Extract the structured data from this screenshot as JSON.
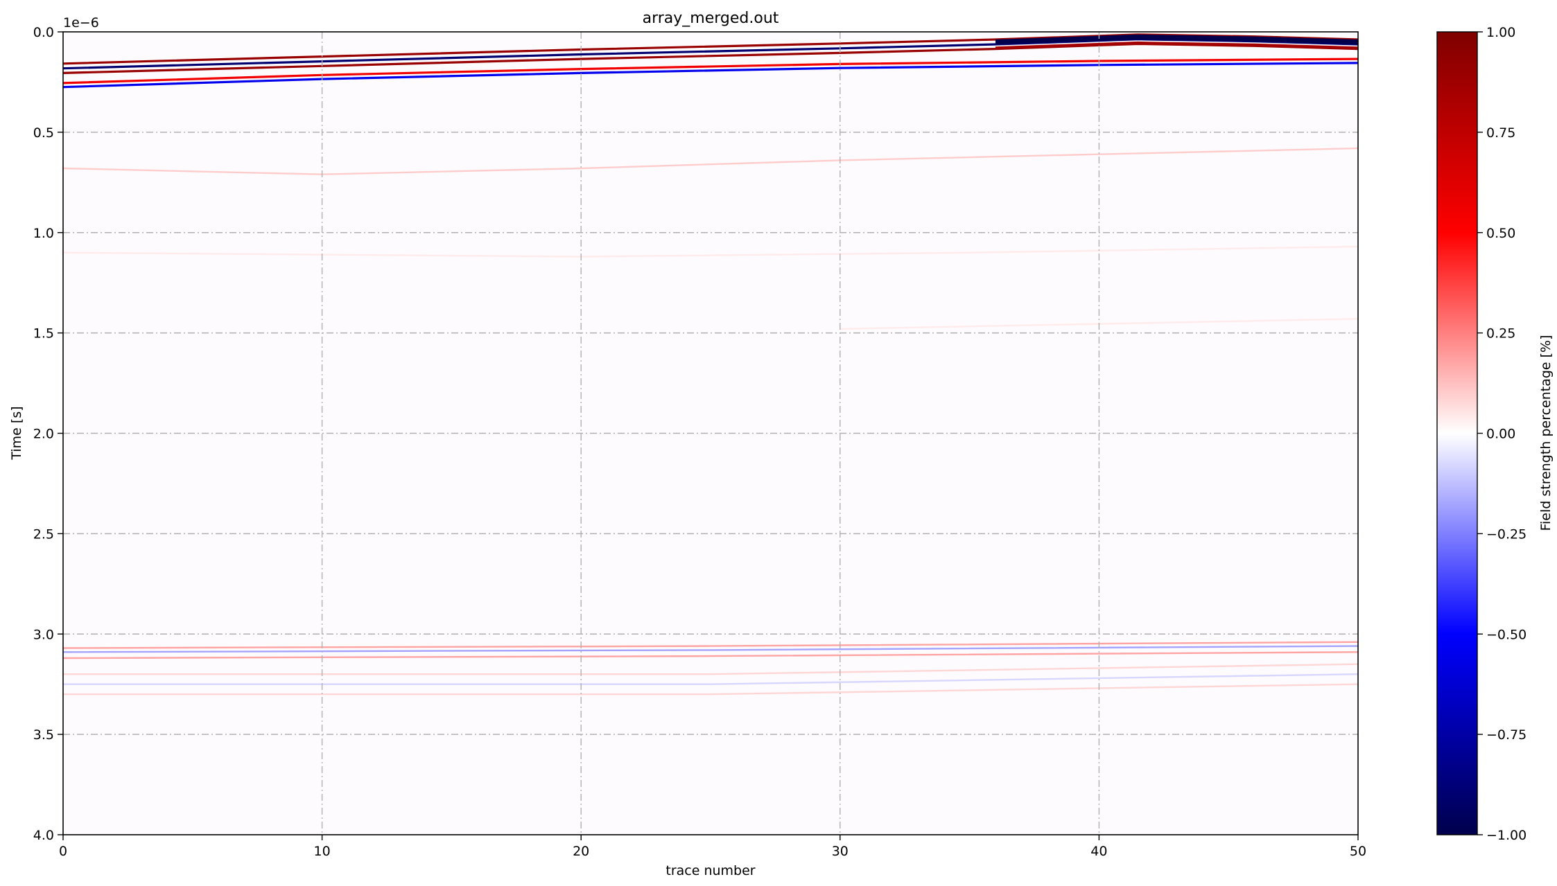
{
  "chart_data": {
    "type": "heatmap",
    "title": "array_merged.out",
    "xlabel": "trace number",
    "ylabel": "Time [s]",
    "y_offset_label": "1e−6",
    "xlim": [
      0,
      50
    ],
    "ylim": [
      4.0,
      0.0
    ],
    "y_inverted": true,
    "x_ticks": [
      0,
      10,
      20,
      30,
      40,
      50
    ],
    "x_tick_labels": [
      "0",
      "10",
      "20",
      "30",
      "40",
      "50"
    ],
    "y_ticks": [
      0.0,
      0.5,
      1.0,
      1.5,
      2.0,
      2.5,
      3.0,
      3.5,
      4.0
    ],
    "y_tick_labels": [
      "0.0",
      "0.5",
      "1.0",
      "1.5",
      "2.0",
      "2.5",
      "3.0",
      "3.5",
      "4.0"
    ],
    "grid": true,
    "colormap": "seismic",
    "colormap_stops": [
      "#00004c",
      "#0000ff",
      "#ffffff",
      "#ff0000",
      "#7f0000"
    ],
    "colorbar": {
      "label": "Field strength percentage [%]",
      "range": [
        -1.0,
        1.0
      ],
      "ticks": [
        1.0,
        0.75,
        0.5,
        0.25,
        0.0,
        -0.25,
        -0.5,
        -0.75,
        -1.0
      ],
      "tick_labels": [
        "1.00",
        "0.75",
        "0.50",
        "0.25",
        "0.00",
        "−0.25",
        "−0.50",
        "−0.75",
        "−1.00"
      ]
    },
    "reflections": [
      {
        "name": "direct-wave",
        "points": [
          [
            0,
            0.17
          ],
          [
            10,
            0.135
          ],
          [
            20,
            0.1
          ],
          [
            30,
            0.07
          ],
          [
            36,
            0.05
          ],
          [
            41.5,
            0.025
          ],
          [
            46,
            0.035
          ],
          [
            50,
            0.05
          ]
        ],
        "amplitude": 0.9,
        "bands": [
          {
            "offset": -0.012,
            "sign": 1
          },
          {
            "offset": 0.012,
            "sign": -1
          },
          {
            "offset": 0.035,
            "sign": 1
          }
        ]
      },
      {
        "name": "ground-wave",
        "points": [
          [
            0,
            0.265
          ],
          [
            10,
            0.225
          ],
          [
            20,
            0.195
          ],
          [
            30,
            0.17
          ],
          [
            40,
            0.155
          ],
          [
            50,
            0.145
          ]
        ],
        "amplitude": 0.55,
        "bands": [
          {
            "offset": -0.01,
            "sign": 1
          },
          {
            "offset": 0.01,
            "sign": -1
          }
        ]
      },
      {
        "name": "reflector-1",
        "points": [
          [
            0,
            0.68
          ],
          [
            10,
            0.71
          ],
          [
            20,
            0.68
          ],
          [
            30,
            0.64
          ],
          [
            40,
            0.61
          ],
          [
            50,
            0.58
          ]
        ],
        "amplitude": 0.1,
        "bands": [
          {
            "offset": 0.0,
            "sign": 1
          }
        ]
      },
      {
        "name": "reflector-2",
        "points": [
          [
            0,
            1.1
          ],
          [
            20,
            1.12
          ],
          [
            35,
            1.1
          ],
          [
            50,
            1.07
          ]
        ],
        "amplitude": 0.04,
        "bands": [
          {
            "offset": 0.0,
            "sign": 1
          }
        ]
      },
      {
        "name": "reflector-3",
        "points": [
          [
            30,
            1.48
          ],
          [
            50,
            1.43
          ]
        ],
        "amplitude": 0.04,
        "bands": [
          {
            "offset": 0.0,
            "sign": 1
          }
        ]
      },
      {
        "name": "late-band-top",
        "points": [
          [
            0,
            3.08
          ],
          [
            25,
            3.07
          ],
          [
            50,
            3.05
          ]
        ],
        "amplitude": 0.18,
        "bands": [
          {
            "offset": -0.01,
            "sign": 1
          },
          {
            "offset": 0.01,
            "sign": -1
          },
          {
            "offset": 0.04,
            "sign": 1
          }
        ]
      },
      {
        "name": "late-band-bottom",
        "points": [
          [
            0,
            3.25
          ],
          [
            25,
            3.25
          ],
          [
            50,
            3.2
          ]
        ],
        "amplitude": 0.08,
        "bands": [
          {
            "offset": -0.05,
            "sign": 1
          },
          {
            "offset": 0.0,
            "sign": -1
          },
          {
            "offset": 0.05,
            "sign": 1
          }
        ]
      }
    ]
  }
}
